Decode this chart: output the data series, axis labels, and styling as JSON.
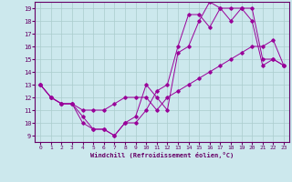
{
  "xlabel": "Windchill (Refroidissement éolien,°C)",
  "xlim": [
    -0.5,
    23.5
  ],
  "ylim": [
    8.5,
    19.5
  ],
  "xticks": [
    0,
    1,
    2,
    3,
    4,
    5,
    6,
    7,
    8,
    9,
    10,
    11,
    12,
    13,
    14,
    15,
    16,
    17,
    18,
    19,
    20,
    21,
    22,
    23
  ],
  "yticks": [
    9,
    10,
    11,
    12,
    13,
    14,
    15,
    16,
    17,
    18,
    19
  ],
  "background_color": "#cce8ed",
  "grid_color": "#aacccc",
  "line_color": "#990099",
  "line1_x": [
    0,
    1,
    2,
    3,
    4,
    5,
    6,
    7,
    8,
    9,
    10,
    11,
    12,
    13,
    14,
    15,
    16,
    17,
    18,
    19,
    20,
    21,
    22,
    23
  ],
  "line1_y": [
    13,
    12,
    11.5,
    11.5,
    11,
    11,
    11,
    11.5,
    12,
    12,
    12,
    11,
    12,
    12.5,
    13,
    13.5,
    14,
    14.5,
    15,
    15.5,
    16,
    16,
    16.5,
    14.5
  ],
  "line2_x": [
    0,
    1,
    2,
    3,
    4,
    5,
    6,
    7,
    8,
    9,
    10,
    11,
    12,
    13,
    14,
    15,
    16,
    17,
    18,
    19,
    20,
    21,
    22,
    23
  ],
  "line2_y": [
    13,
    12,
    11.5,
    11.5,
    10,
    9.5,
    9.5,
    9,
    10,
    10,
    11,
    12.5,
    13,
    16,
    18.5,
    18.5,
    17.5,
    19,
    19,
    19,
    19,
    15,
    15,
    14.5
  ],
  "line3_x": [
    0,
    1,
    2,
    3,
    4,
    5,
    6,
    7,
    8,
    9,
    10,
    11,
    12,
    13,
    14,
    15,
    16,
    17,
    18,
    19,
    20,
    21,
    22,
    23
  ],
  "line3_y": [
    13,
    12,
    11.5,
    11.5,
    10.5,
    9.5,
    9.5,
    9,
    10,
    10.5,
    13,
    12,
    11,
    15.5,
    16,
    18,
    19.5,
    19,
    18,
    19,
    18,
    14.5,
    15,
    14.5
  ]
}
